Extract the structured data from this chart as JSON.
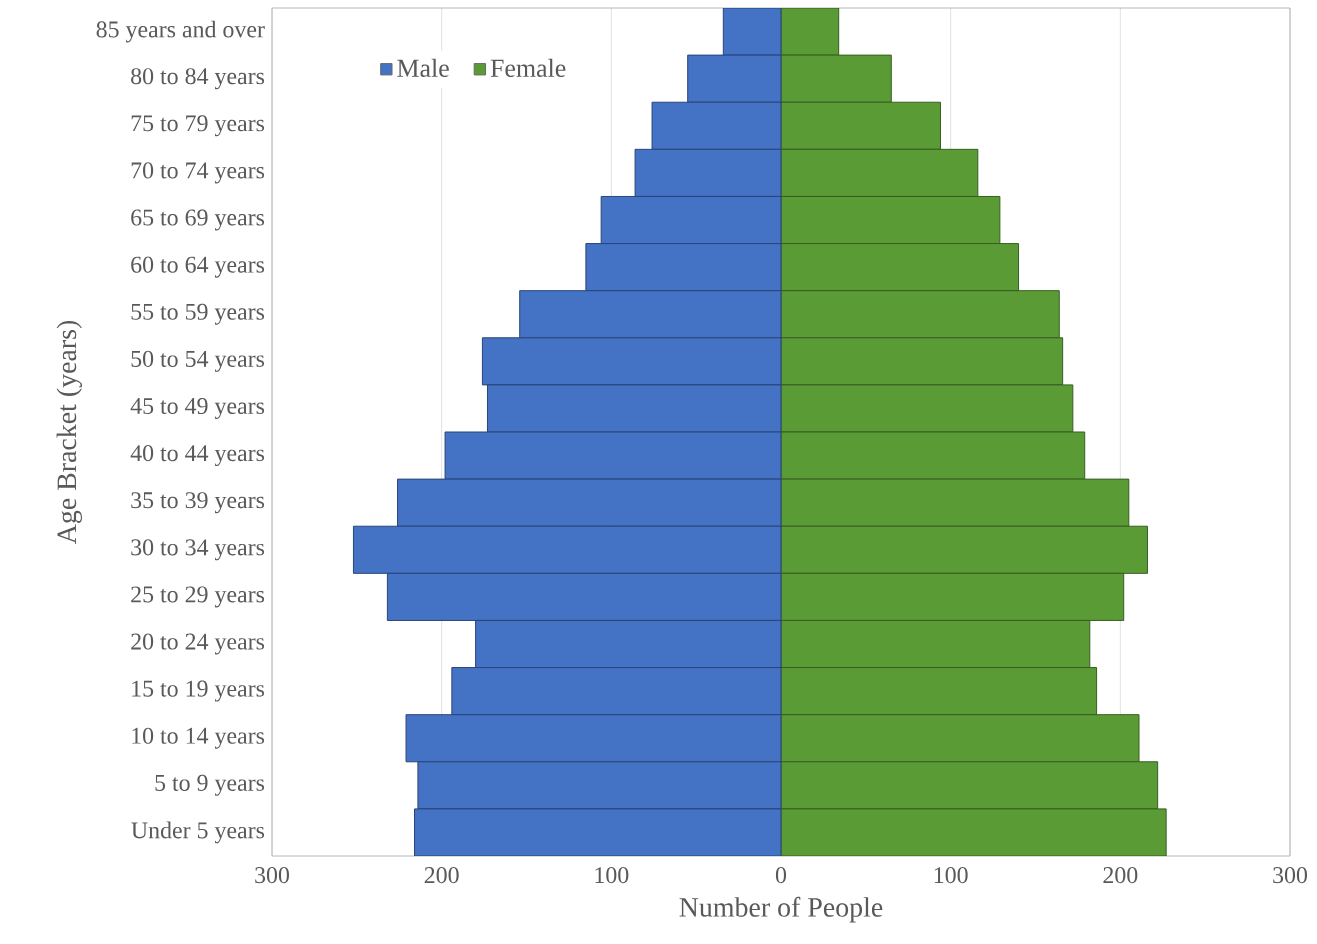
{
  "chart_data": {
    "type": "bar",
    "orientation": "horizontal",
    "stacked": true,
    "xlabel": "Number of People",
    "ylabel": "Age Bracket (years)",
    "categories": [
      "85 years and over",
      "80 to 84 years",
      "75 to 79 years",
      "70 to 74 years",
      "65 to 69 years",
      "60 to 64 years",
      "55 to 59 years",
      "50 to 54 years",
      "45 to 49 years",
      "40 to 44 years",
      "35 to 39 years",
      "30 to 34 years",
      "25 to 29 years",
      "20 to 24 years",
      "15 to 19 years",
      "10 to 14 years",
      "5 to 9 years",
      "Under 5 years"
    ],
    "series": [
      {
        "name": "Male",
        "color": "#4472c4",
        "values": [
          -34,
          -55,
          -76,
          -86,
          -106,
          -115,
          -154,
          -176,
          -173,
          -198,
          -226,
          -252,
          -232,
          -180,
          -194,
          -221,
          -214,
          -216
        ]
      },
      {
        "name": "Female",
        "color": "#5b9b36",
        "values": [
          34,
          65,
          94,
          116,
          129,
          140,
          164,
          166,
          172,
          179,
          205,
          216,
          202,
          182,
          186,
          211,
          222,
          227
        ]
      }
    ],
    "xlim": [
      -300,
      300
    ],
    "xticks": [
      {
        "value": -300,
        "label": "300"
      },
      {
        "value": -200,
        "label": "200"
      },
      {
        "value": -100,
        "label": "100"
      },
      0,
      100,
      200,
      300
    ],
    "grid": "x",
    "legend": "top left"
  }
}
